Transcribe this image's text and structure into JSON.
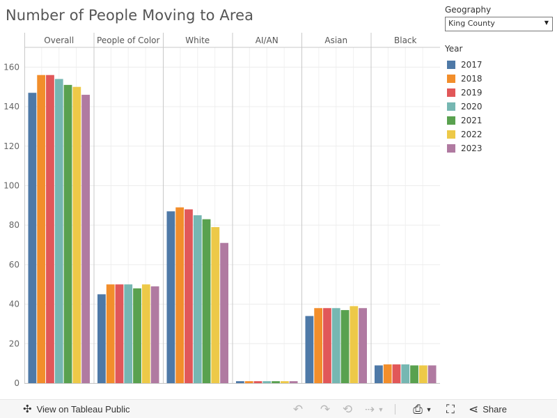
{
  "title": "Number of People Moving to Area",
  "filter": {
    "label": "Geography",
    "selected": "King County"
  },
  "legend": {
    "title": "Year"
  },
  "toolbar": {
    "view_label": "View on Tableau Public",
    "share_label": "Share"
  },
  "colors": {
    "2017": "#4e79a7",
    "2018": "#f28e2b",
    "2019": "#e15759",
    "2020": "#76b7b2",
    "2021": "#59a14f",
    "2022": "#edc948",
    "2023": "#b07aa1"
  },
  "chart_data": {
    "type": "bar",
    "title": "Number of People Moving to Area",
    "xlabel": "",
    "ylabel": "",
    "categories": [
      "Overall",
      "People of Color",
      "White",
      "AI/AN",
      "Asian",
      "Black"
    ],
    "series": [
      {
        "name": "2017",
        "values": [
          147,
          45,
          87,
          1,
          34,
          9
        ]
      },
      {
        "name": "2018",
        "values": [
          156,
          50,
          89,
          1,
          38,
          9.5
        ]
      },
      {
        "name": "2019",
        "values": [
          156,
          50,
          88,
          1,
          38,
          9.5
        ]
      },
      {
        "name": "2020",
        "values": [
          154,
          50,
          85,
          1,
          38,
          9.5
        ]
      },
      {
        "name": "2021",
        "values": [
          151,
          48,
          83,
          1,
          37,
          9
        ]
      },
      {
        "name": "2022",
        "values": [
          150,
          50,
          79,
          1,
          39,
          9
        ]
      },
      {
        "name": "2023",
        "values": [
          146,
          49,
          71,
          1,
          38,
          9
        ]
      }
    ],
    "yticks": [
      0,
      20,
      40,
      60,
      80,
      100,
      120,
      140,
      160
    ],
    "ylim": [
      0,
      170
    ],
    "grid": true,
    "legend_position": "right"
  }
}
